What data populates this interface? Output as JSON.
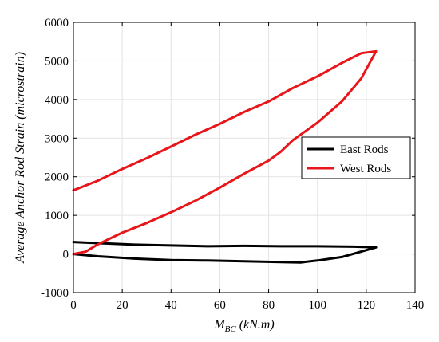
{
  "chart_data": {
    "type": "line",
    "xlabel": {
      "main": "M",
      "sub": "BC",
      "rest": " (kN.m)"
    },
    "ylabel": "Average  Anchor  Rod Strain  (microstrain)",
    "xlim": [
      0,
      140
    ],
    "ylim": [
      -1000,
      6000
    ],
    "xticks": [
      0,
      20,
      40,
      60,
      80,
      100,
      120,
      140
    ],
    "yticks": [
      -1000,
      0,
      1000,
      2000,
      3000,
      4000,
      5000,
      6000
    ],
    "grid": true,
    "legend_position": "center-right",
    "series": [
      {
        "name": "East Rods",
        "color": "#000000",
        "x": [
          0,
          10,
          25,
          40,
          55,
          70,
          85,
          93,
          100,
          110,
          124,
          115,
          100,
          85,
          70,
          55,
          40,
          25,
          10,
          0
        ],
        "y": [
          0,
          -60,
          -120,
          -160,
          -170,
          -190,
          -210,
          -220,
          -170,
          -80,
          170,
          190,
          200,
          200,
          210,
          200,
          220,
          240,
          280,
          310
        ]
      },
      {
        "name": "West Rods",
        "color": "#e8161b",
        "x": [
          0,
          5,
          10,
          20,
          30,
          40,
          50,
          60,
          70,
          80,
          85,
          90,
          100,
          110,
          118,
          124,
          118,
          110,
          100,
          90,
          80,
          70,
          60,
          50,
          40,
          30,
          20,
          10,
          0
        ],
        "y": [
          0,
          60,
          250,
          550,
          800,
          1080,
          1380,
          1720,
          2080,
          2420,
          2650,
          2950,
          3400,
          3950,
          4550,
          5250,
          5200,
          4950,
          4600,
          4300,
          3950,
          3680,
          3370,
          3090,
          2780,
          2480,
          2200,
          1900,
          1650
        ]
      }
    ]
  }
}
